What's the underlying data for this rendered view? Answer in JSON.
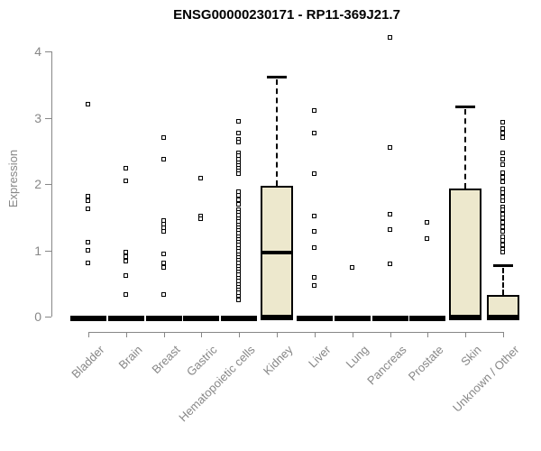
{
  "page": {
    "background": "#ffffff"
  },
  "chart_data": {
    "type": "box",
    "title": "ENSG00000230171 - RP11-369J21.7",
    "ylabel": "Expression",
    "xlabel": "",
    "ylim": [
      0,
      4.3
    ],
    "yticks": [
      0,
      1,
      2,
      3,
      4
    ],
    "grid": false,
    "legend": null,
    "colors": {
      "box_fill": "#ede8cd",
      "box_border": "#000000",
      "median": "#000000",
      "axis": "#878787",
      "tick_label": "#878787",
      "title": "#000000",
      "point_border": "#000000",
      "point_fill": "#ffffff"
    },
    "point_style": "open-square",
    "categories": [
      "Bladder",
      "Brain",
      "Breast",
      "Gastric",
      "Hematopoietic cells",
      "Kidney",
      "Liver",
      "Lung",
      "Pancreas",
      "Prostate",
      "Skin",
      "Unknown / Other"
    ],
    "boxes": [
      {
        "category": "Bladder",
        "q1": 0,
        "median": 0,
        "q3": 0,
        "whisker_low": 0,
        "whisker_high": 0,
        "outlier_points": [
          3.2,
          1.81,
          1.74,
          1.62,
          1.12,
          1.0,
          0.8
        ]
      },
      {
        "category": "Brain",
        "q1": 0,
        "median": 0,
        "q3": 0,
        "whisker_low": 0,
        "whisker_high": 0,
        "outlier_points": [
          2.23,
          2.04,
          0.97,
          0.9,
          0.83,
          0.61,
          0.33
        ]
      },
      {
        "category": "Breast",
        "q1": 0,
        "median": 0,
        "q3": 0,
        "whisker_low": 0,
        "whisker_high": 0,
        "outlier_points": [
          2.69,
          2.37,
          1.44,
          1.39,
          1.33,
          1.28,
          0.94,
          0.8,
          0.73,
          0.33
        ]
      },
      {
        "category": "Gastric",
        "q1": 0,
        "median": 0,
        "q3": 0,
        "whisker_low": 0,
        "whisker_high": 0,
        "outlier_points": [
          2.08,
          1.51,
          1.47
        ]
      },
      {
        "category": "Hematopoietic cells",
        "q1": 0,
        "median": 0,
        "q3": 0,
        "whisker_low": 0,
        "whisker_high": 0,
        "outlier_points": [
          2.94,
          2.76,
          2.67,
          2.63,
          2.46,
          2.42,
          2.37,
          2.31,
          2.27,
          2.23,
          2.19,
          2.15,
          1.88,
          1.82,
          1.76,
          1.69,
          1.61,
          1.56,
          1.52,
          1.47,
          1.43,
          1.38,
          1.34,
          1.29,
          1.25,
          1.2,
          1.16,
          1.11,
          1.07,
          1.02,
          0.98,
          0.93,
          0.89,
          0.84,
          0.8,
          0.75,
          0.71,
          0.66,
          0.62,
          0.57,
          0.53,
          0.48,
          0.44,
          0.39,
          0.35,
          0.3,
          0.26,
          0.24
        ]
      },
      {
        "category": "Kidney",
        "q1": 0,
        "median": 0.97,
        "q3": 1.97,
        "whisker_low": 0,
        "whisker_high": 3.62,
        "outlier_points": []
      },
      {
        "category": "Liver",
        "q1": 0,
        "median": 0,
        "q3": 0,
        "whisker_low": 0,
        "whisker_high": 0,
        "outlier_points": [
          3.1,
          2.76,
          2.15,
          1.51,
          1.28,
          1.03,
          0.59,
          0.46
        ]
      },
      {
        "category": "Lung",
        "q1": 0,
        "median": 0,
        "q3": 0,
        "whisker_low": 0,
        "whisker_high": 0,
        "outlier_points": [
          0.73
        ]
      },
      {
        "category": "Pancreas",
        "q1": 0,
        "median": 0,
        "q3": 0,
        "whisker_low": 0,
        "whisker_high": 0,
        "outlier_points": [
          4.2,
          2.54,
          1.54,
          1.31,
          0.79
        ]
      },
      {
        "category": "Prostate",
        "q1": 0,
        "median": 0,
        "q3": 0,
        "whisker_low": 0,
        "whisker_high": 0,
        "outlier_points": [
          1.41,
          1.17
        ]
      },
      {
        "category": "Skin",
        "q1": 0,
        "median": 0,
        "q3": 1.93,
        "whisker_low": 0,
        "whisker_high": 3.17,
        "outlier_points": []
      },
      {
        "category": "Unknown / Other",
        "q1": 0,
        "median": 0,
        "q3": 0.32,
        "whisker_low": 0,
        "whisker_high": 0.78,
        "outlier_points": [
          2.93,
          2.83,
          2.76,
          2.69,
          2.46,
          2.37,
          2.29,
          2.16,
          2.1,
          2.03,
          1.92,
          1.86,
          1.8,
          1.74,
          1.65,
          1.61,
          1.54,
          1.48,
          1.41,
          1.35,
          1.28,
          1.2,
          1.14,
          1.07,
          1.01,
          0.97
        ]
      }
    ]
  }
}
